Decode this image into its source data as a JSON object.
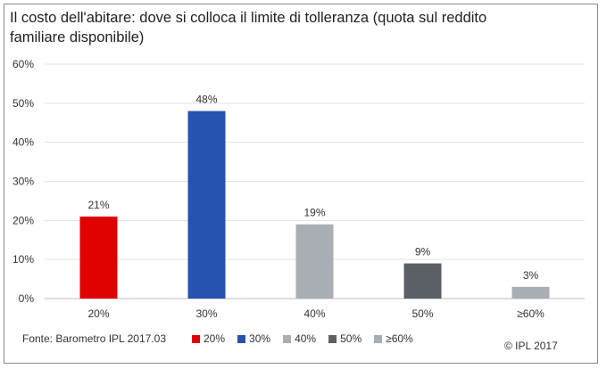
{
  "chart_data": {
    "type": "bar",
    "title": "Il costo dell'abitare: dove si colloca il limite di tolleranza (quota sul reddito familiare disponibile)",
    "categories": [
      "20%",
      "30%",
      "40%",
      "50%",
      "≥60%"
    ],
    "values": [
      21,
      48,
      19,
      9,
      3
    ],
    "data_labels": [
      "21%",
      "48%",
      "19%",
      "9%",
      "3%"
    ],
    "colors": [
      "#e10000",
      "#2652b0",
      "#a9adb4",
      "#5b5f66",
      "#a9adb4"
    ],
    "ylim": [
      0,
      60
    ],
    "yticks": [
      "0%",
      "10%",
      "20%",
      "30%",
      "40%",
      "50%",
      "60%"
    ],
    "ytick_values": [
      0,
      10,
      20,
      30,
      40,
      50,
      60
    ],
    "grid": true,
    "legend_position": "bottom"
  },
  "footer": {
    "source": "Fonte: Barometro IPL 2017.03",
    "copyright": "© IPL 2017"
  },
  "legend": [
    {
      "label": "20%",
      "color": "#e10000"
    },
    {
      "label": "30%",
      "color": "#2652b0"
    },
    {
      "label": "40%",
      "color": "#a9adb4"
    },
    {
      "label": "50%",
      "color": "#5b5f66"
    },
    {
      "label": "≥60%",
      "color": "#a9adb4"
    }
  ]
}
